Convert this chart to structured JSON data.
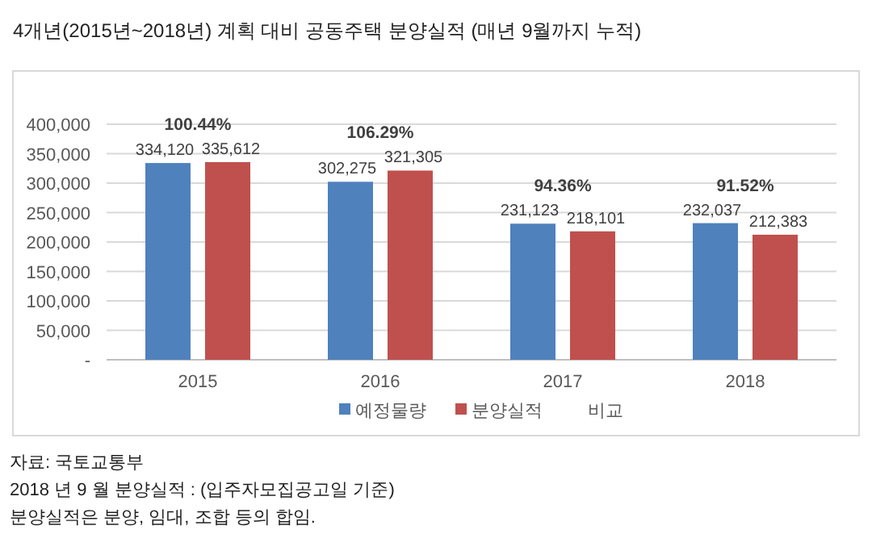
{
  "chart_data": {
    "type": "bar",
    "title": "4개년(2015년~2018년) 계획 대비 공동주택 분양실적 (매년 9월까지 누적)",
    "categories": [
      "2015",
      "2016",
      "2017",
      "2018"
    ],
    "series": [
      {
        "name": "예정물량",
        "color": "#4f81bd",
        "values": [
          334120,
          302275,
          231123,
          232037
        ],
        "value_labels": [
          "334,120",
          "302,275",
          "231,123",
          "232,037"
        ]
      },
      {
        "name": "분양실적",
        "color": "#c0504d",
        "values": [
          335612,
          321305,
          218101,
          212383
        ],
        "value_labels": [
          "335,612",
          "321,305",
          "218,101",
          "212,383"
        ]
      },
      {
        "name": "비교",
        "type": "line",
        "values": [
          null,
          null,
          null,
          null
        ]
      }
    ],
    "ylim": [
      0,
      400000
    ],
    "yticks": [
      {
        "value": 0,
        "label": "-"
      },
      {
        "value": 50000,
        "label": "50,000"
      },
      {
        "value": 100000,
        "label": "100,000"
      },
      {
        "value": 150000,
        "label": "150,000"
      },
      {
        "value": 200000,
        "label": "200,000"
      },
      {
        "value": 250000,
        "label": "250,000"
      },
      {
        "value": 300000,
        "label": "300,000"
      },
      {
        "value": 350000,
        "label": "350,000"
      },
      {
        "value": 400000,
        "label": "400,000"
      }
    ],
    "grid": "y",
    "legend": "bottom",
    "annotations": [
      "100.44%",
      "106.29%",
      "94.36%",
      "91.52%",
      "자료: 국토교통부",
      "2018 년 9 월 분양실적 : (입주자모집공고일 기준)",
      "분양실적은 분양, 임대, 조합 등의 합임."
    ]
  }
}
